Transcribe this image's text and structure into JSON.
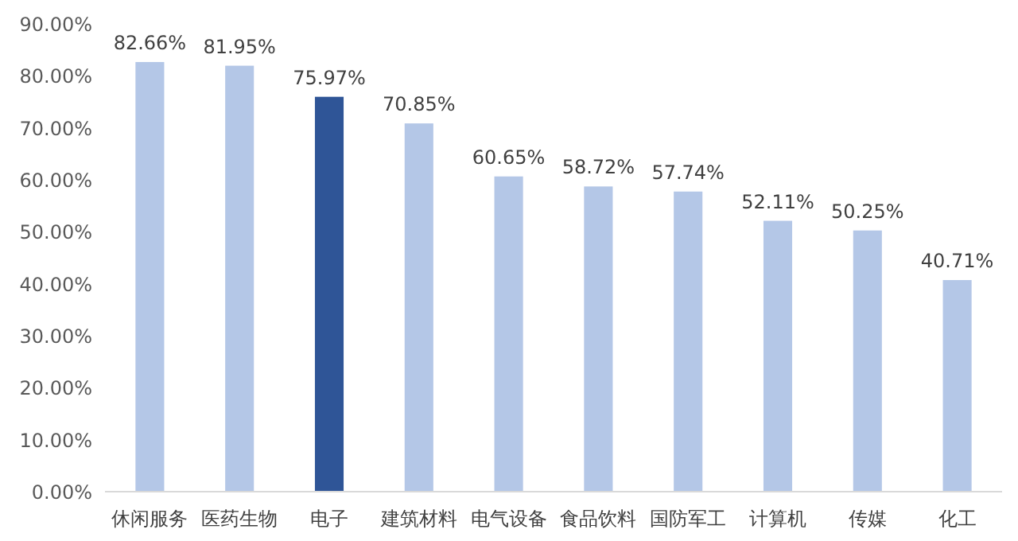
{
  "chart_data": {
    "type": "bar",
    "categories": [
      "休闲服务",
      "医药生物",
      "电子",
      "建筑材料",
      "电气设备",
      "食品饮料",
      "国防军工",
      "计算机",
      "传媒",
      "化工"
    ],
    "values": [
      82.66,
      81.95,
      75.97,
      70.85,
      60.65,
      58.72,
      57.74,
      52.11,
      50.25,
      40.71
    ],
    "colors": [
      "#b4c7e7",
      "#b4c7e7",
      "#2f5597",
      "#b4c7e7",
      "#b4c7e7",
      "#b4c7e7",
      "#b4c7e7",
      "#b4c7e7",
      "#b4c7e7",
      "#b4c7e7"
    ],
    "value_labels": [
      "82.66%",
      "81.95%",
      "75.97%",
      "70.85%",
      "60.65%",
      "58.72%",
      "57.74%",
      "52.11%",
      "50.25%",
      "40.71%"
    ],
    "ylim": [
      0,
      90
    ],
    "yticks": [
      {
        "value": 0,
        "label": "0.00%"
      },
      {
        "value": 10,
        "label": "10.00%"
      },
      {
        "value": 20,
        "label": "20.00%"
      },
      {
        "value": 30,
        "label": "30.00%"
      },
      {
        "value": 40,
        "label": "40.00%"
      },
      {
        "value": 50,
        "label": "50.00%"
      },
      {
        "value": 60,
        "label": "60.00%"
      },
      {
        "value": 70,
        "label": "70.00%"
      },
      {
        "value": 80,
        "label": "80.00%"
      },
      {
        "value": 90,
        "label": "90.00%"
      }
    ]
  }
}
